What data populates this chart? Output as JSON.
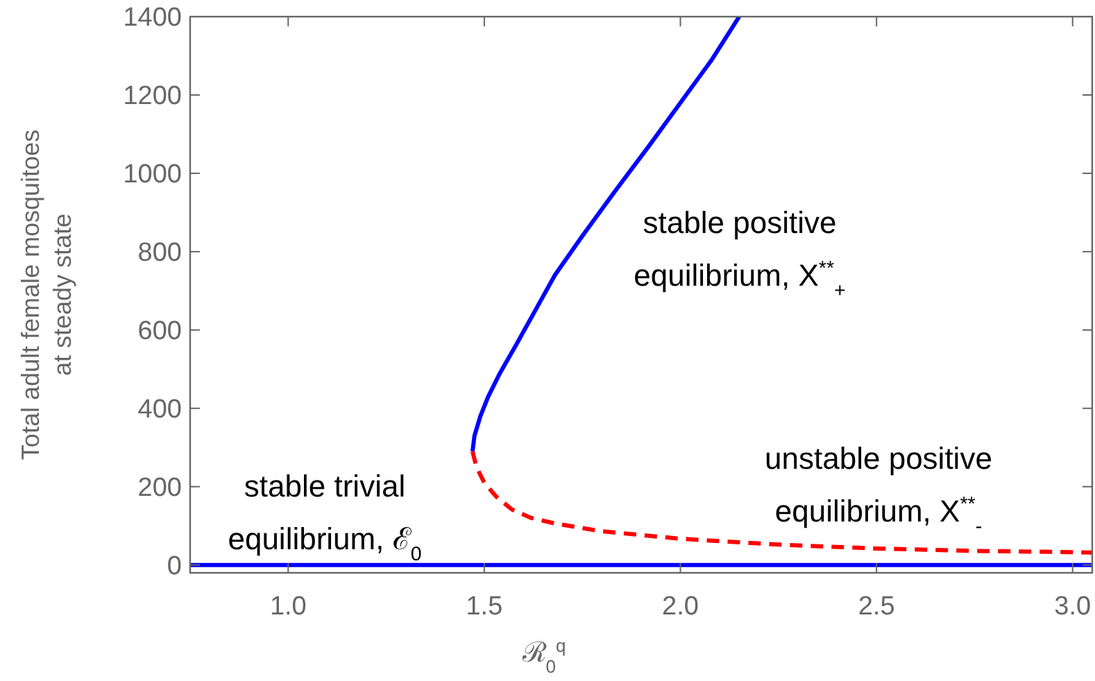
{
  "chart_data": {
    "type": "line",
    "xlabel": "ℛ$_{0}$$^{q}$",
    "ylabel": "Total adult female mosquitoes\nat steady state",
    "xlim": [
      0.75,
      3.05
    ],
    "ylim": [
      -20,
      1400
    ],
    "xticks": [
      {
        "value": 1,
        "label": "1.0"
      },
      {
        "value": 1.5,
        "label": "1.5"
      },
      {
        "value": 2,
        "label": "2.0"
      },
      {
        "value": 2.5,
        "label": "2.5"
      },
      {
        "value": 3,
        "label": "3.0"
      }
    ],
    "yticks": [
      0,
      200,
      400,
      600,
      800,
      1000,
      1200,
      1400
    ],
    "grid": false,
    "series": [
      {
        "color": "#0000ff",
        "line_style": "solid",
        "x": [
          0.75,
          3.05
        ],
        "values": [
          0,
          0
        ]
      },
      {
        "color": "#0000ff",
        "line_style": "solid",
        "x": [
          1.47,
          1.475,
          1.49,
          1.51,
          1.54,
          1.58,
          1.63,
          1.68,
          1.75,
          1.83,
          1.92,
          2.0,
          2.08,
          2.15
        ],
        "values": [
          290,
          330,
          380,
          430,
          490,
          560,
          650,
          740,
          840,
          950,
          1070,
          1180,
          1290,
          1400
        ]
      },
      {
        "color": "#ff0000",
        "line_style": "dashed",
        "x": [
          1.47,
          1.48,
          1.5,
          1.53,
          1.57,
          1.62,
          1.68,
          1.8,
          2.0,
          2.25,
          2.5,
          2.75,
          3.05
        ],
        "values": [
          290,
          250,
          210,
          175,
          142,
          120,
          106,
          86,
          67,
          52,
          42,
          36,
          32
        ]
      }
    ],
    "annotations": [
      "stable trivial\nequilibrium, ℰ$_{0}$",
      "stable positive\nequilibrium, X$^{**}$$_{+}$",
      "unstable positive\nequilibrium, X$^{**}$$_{-}$"
    ]
  }
}
